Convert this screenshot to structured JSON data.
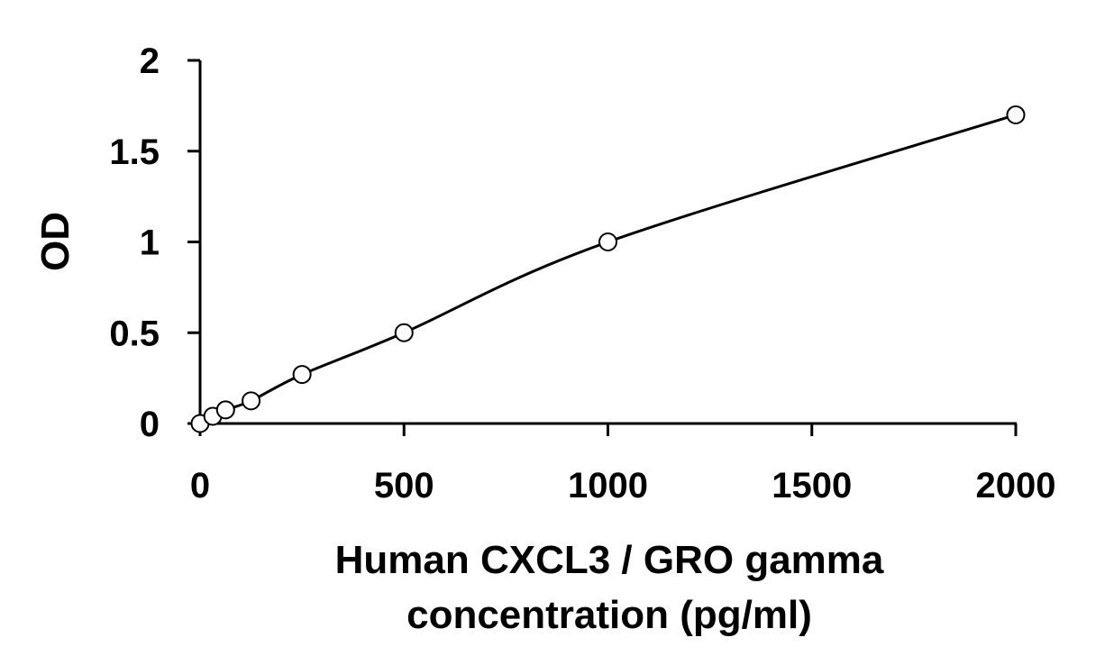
{
  "chart_data": {
    "type": "scatter",
    "xlabel_lines": [
      "Human CXCL3 / GRO gamma",
      "concentration (pg/ml)"
    ],
    "ylabel": "OD",
    "xlim": [
      0,
      2000
    ],
    "ylim": [
      0,
      2
    ],
    "xticks": [
      0,
      500,
      1000,
      1500,
      2000
    ],
    "xtick_labels": [
      "0",
      "500",
      "1000",
      "1500",
      "2000"
    ],
    "yticks": [
      0,
      0.5,
      1,
      1.5,
      2
    ],
    "ytick_labels": [
      "0",
      "0.5",
      "1",
      "1.5",
      "2"
    ],
    "grid": false,
    "series": [
      {
        "marker": "open-circle",
        "fit_line": true,
        "x": [
          0,
          31.25,
          62.5,
          125,
          250,
          500,
          1000,
          2000
        ],
        "y": [
          0,
          0.04,
          0.075,
          0.125,
          0.27,
          0.5,
          1.0,
          1.7
        ]
      }
    ],
    "colors": {
      "line": "#000000",
      "marker_stroke": "#000000",
      "marker_fill": "#ffffff"
    }
  }
}
